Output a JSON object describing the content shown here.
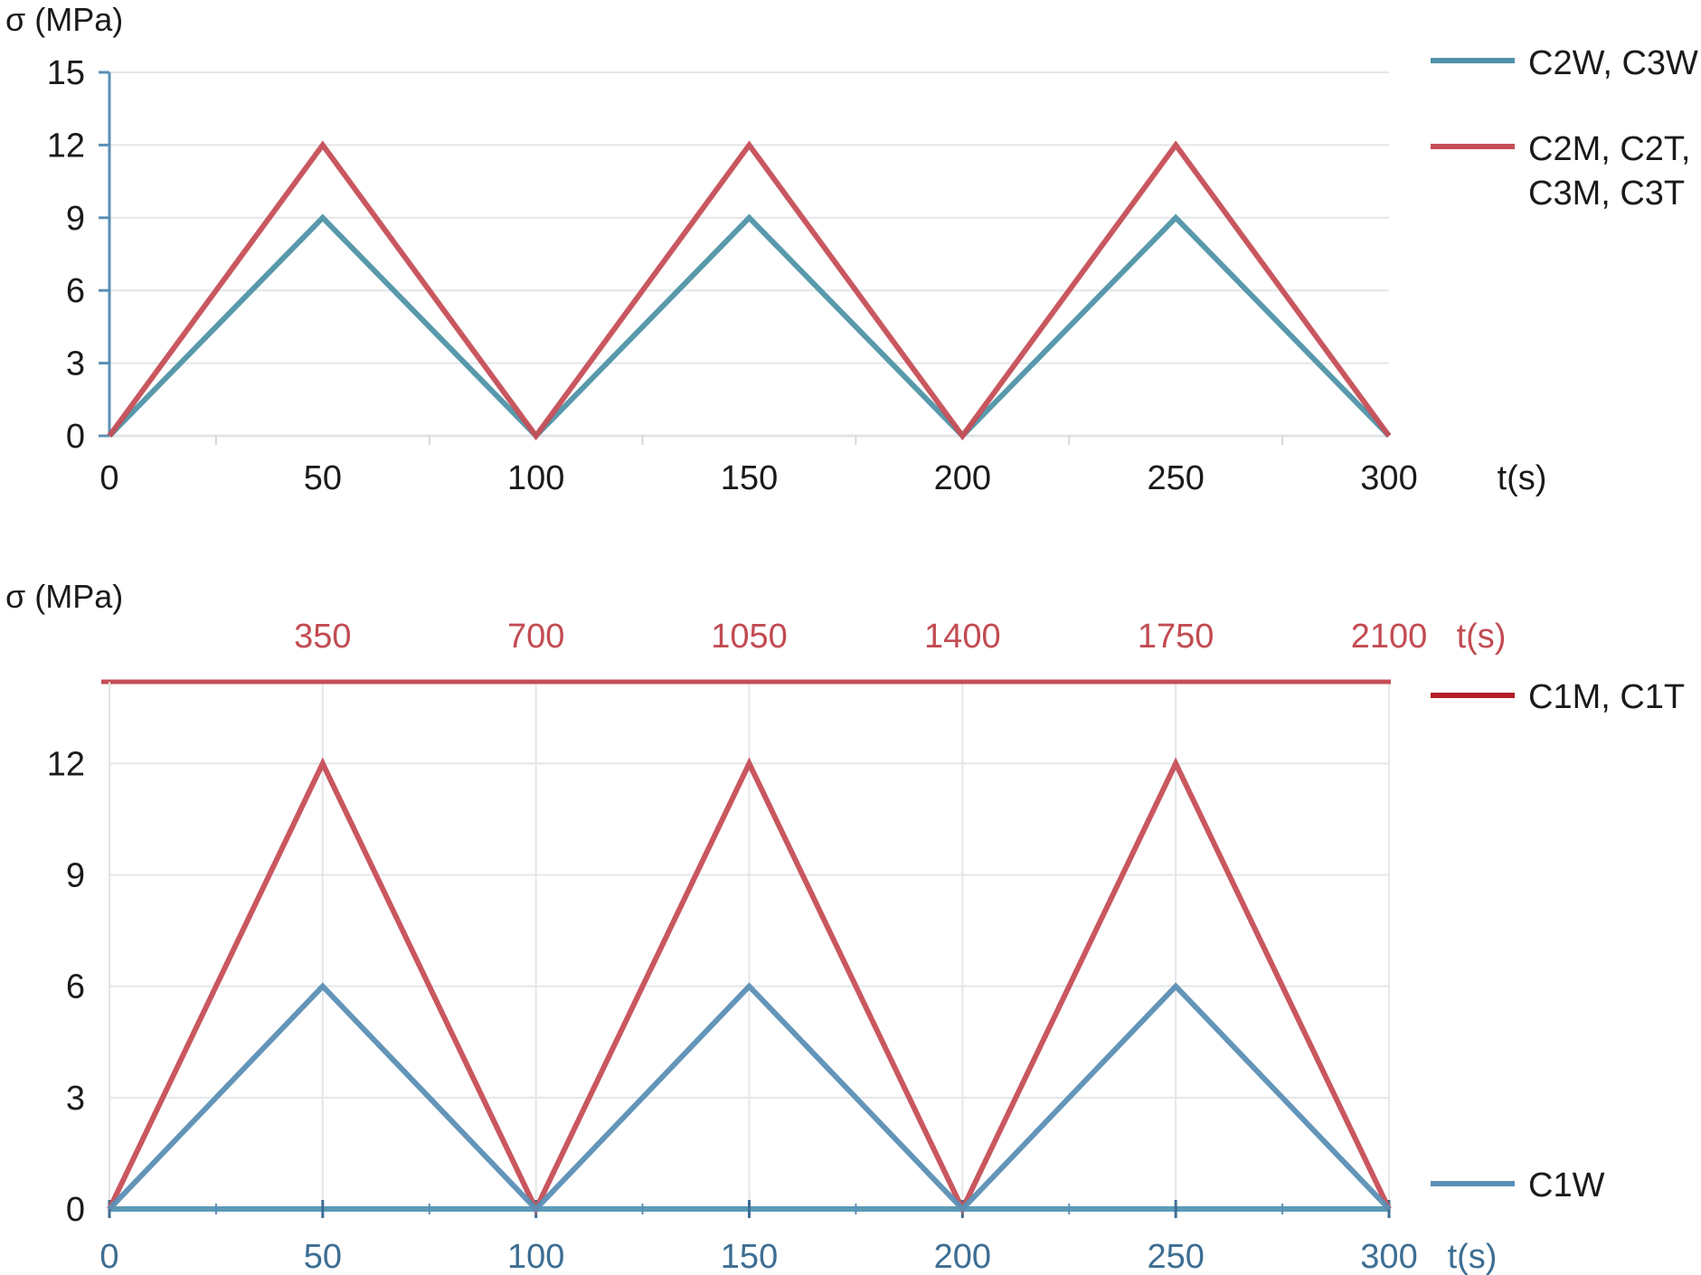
{
  "colors": {
    "blue": "#5b8fb5",
    "teal": "#4f93a8",
    "red": "#c64e56",
    "dark_red": "#b41f2a",
    "blue_text": "#3d6e93",
    "red_text": "#c24b52"
  },
  "chart_data": [
    {
      "type": "line",
      "ylabel": "σ (MPa)",
      "xlabel": "t(s)",
      "xlim": [
        0,
        300
      ],
      "ylim": [
        0,
        15
      ],
      "x_ticks": [
        "0",
        "50",
        "100",
        "150",
        "200",
        "250",
        "300"
      ],
      "y_ticks": [
        "0",
        "3",
        "6",
        "9",
        "12",
        "15"
      ],
      "grid": true,
      "legend_position": "right",
      "series": [
        {
          "name": "C2W, C3W",
          "color": "#4f93a8",
          "x": [
            0,
            50,
            100,
            150,
            200,
            250,
            300
          ],
          "y": [
            0,
            9,
            0,
            9,
            0,
            9,
            0
          ]
        },
        {
          "name": "C2M, C2T,\nC3M, C3T",
          "name_lines": [
            "C2M, C2T,",
            "C3M, C3T"
          ],
          "color": "#c64e56",
          "x": [
            0,
            50,
            100,
            150,
            200,
            250,
            300
          ],
          "y": [
            0,
            12,
            0,
            12,
            0,
            12,
            0
          ]
        }
      ]
    },
    {
      "type": "line",
      "ylabel": "σ (MPa)",
      "xlabel_bottom": "t(s)",
      "xlabel_top": "t(s)",
      "xlim_bottom": [
        0,
        300
      ],
      "xlim_top": [
        0,
        2100
      ],
      "ylim": [
        0,
        14.2
      ],
      "x_ticks_bottom": [
        "0",
        "50",
        "100",
        "150",
        "200",
        "250",
        "300"
      ],
      "x_ticks_top": [
        "350",
        "700",
        "1050",
        "1400",
        "1750",
        "2100"
      ],
      "y_ticks": [
        "0",
        "3",
        "6",
        "9",
        "12"
      ],
      "grid": true,
      "legend_position": "right",
      "series": [
        {
          "name": "C1M, C1T",
          "color": "#c64e56",
          "axis": "top",
          "x": [
            0,
            350,
            700,
            1050,
            1400,
            1750,
            2100
          ],
          "y": [
            0,
            12,
            0,
            12,
            0,
            12,
            0
          ]
        },
        {
          "name": "C1W",
          "color": "#5b8fb5",
          "axis": "bottom",
          "x": [
            0,
            50,
            100,
            150,
            200,
            250,
            300
          ],
          "y": [
            0,
            6,
            0,
            6,
            0,
            6,
            0
          ]
        }
      ]
    }
  ]
}
